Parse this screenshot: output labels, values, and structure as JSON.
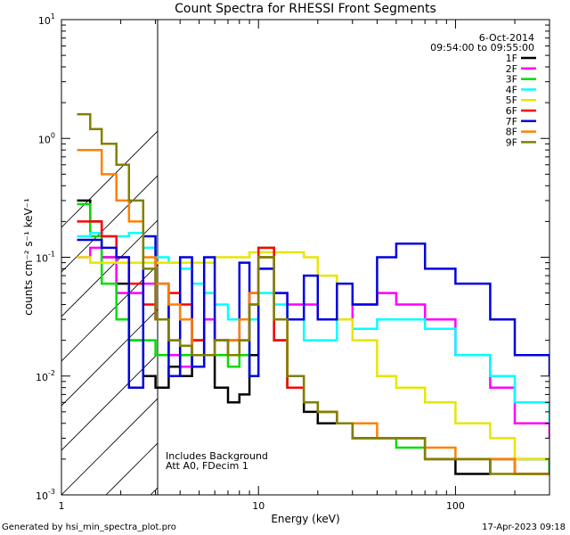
{
  "chart_data": {
    "type": "line",
    "title": "Count Spectra for RHESSI Front Segments",
    "xlabel": "Energy (keV)",
    "ylabel": "counts cm⁻² s⁻¹ keV⁻¹",
    "x_scale": "log",
    "y_scale": "log",
    "xlim": [
      1,
      300
    ],
    "ylim": [
      0.001,
      10
    ],
    "x_tick_labels": [
      "1",
      "10",
      "100"
    ],
    "y_tick_labels": [
      {
        "base": "10",
        "exp": "1"
      },
      {
        "base": "10",
        "exp": "0"
      },
      {
        "base": "10",
        "exp": "-1"
      },
      {
        "base": "10",
        "exp": "-2"
      },
      {
        "base": "10",
        "exp": "-3"
      }
    ],
    "date": "6-Oct-2014",
    "time_range": "09:54:00 to 09:55:00",
    "annotations": [
      "Includes Background",
      "Att A0, FDecim 1"
    ],
    "hatched_region_keV": [
      1,
      3
    ],
    "legend_placement": "top-right",
    "series": [
      {
        "name": "1F",
        "color": "#000000",
        "x": [
          1.2,
          1.4,
          1.6,
          1.9,
          2.2,
          2.6,
          3.0,
          3.5,
          4.0,
          4.6,
          5.3,
          6.0,
          7.0,
          8.0,
          9.0,
          10.0,
          12.0,
          14.0,
          17.0,
          20.0,
          25.0,
          30.0,
          40.0,
          50.0,
          70.0,
          100.0,
          150.0,
          200.0,
          300.0
        ],
        "y": [
          0.3,
          0.2,
          0.1,
          0.06,
          0.02,
          0.01,
          0.008,
          0.012,
          0.01,
          0.02,
          0.015,
          0.008,
          0.006,
          0.007,
          0.015,
          0.1,
          0.02,
          0.008,
          0.005,
          0.004,
          0.004,
          0.003,
          0.003,
          0.003,
          0.002,
          0.0015,
          0.002,
          0.002,
          0.0015
        ]
      },
      {
        "name": "2F",
        "color": "#ff00ff",
        "x": [
          1.2,
          1.4,
          1.6,
          1.9,
          2.2,
          2.6,
          3.0,
          3.5,
          4.0,
          4.6,
          5.3,
          6.0,
          7.0,
          8.0,
          9.0,
          10.0,
          12.0,
          14.0,
          17.0,
          20.0,
          25.0,
          30.0,
          40.0,
          50.0,
          70.0,
          100.0,
          150.0,
          200.0,
          300.0
        ],
        "y": [
          0.1,
          0.12,
          0.1,
          0.05,
          0.05,
          0.06,
          0.03,
          0.015,
          0.012,
          0.02,
          0.03,
          0.02,
          0.02,
          0.03,
          0.05,
          0.08,
          0.05,
          0.04,
          0.04,
          0.03,
          0.03,
          0.04,
          0.05,
          0.04,
          0.03,
          0.015,
          0.008,
          0.004,
          0.003
        ]
      },
      {
        "name": "3F",
        "color": "#00dd00",
        "x": [
          1.2,
          1.4,
          1.6,
          1.9,
          2.2,
          2.6,
          3.0,
          3.5,
          4.0,
          4.6,
          5.3,
          6.0,
          7.0,
          8.0,
          9.0,
          10.0,
          12.0,
          14.0,
          17.0,
          20.0,
          25.0,
          30.0,
          40.0,
          50.0,
          70.0,
          100.0,
          150.0,
          200.0,
          300.0
        ],
        "y": [
          0.28,
          0.15,
          0.06,
          0.03,
          0.02,
          0.02,
          0.015,
          0.02,
          0.015,
          0.012,
          0.015,
          0.015,
          0.012,
          0.015,
          0.04,
          0.12,
          0.02,
          0.008,
          0.006,
          0.005,
          0.004,
          0.003,
          0.003,
          0.0025,
          0.002,
          0.002,
          0.002,
          0.002,
          0.0015
        ]
      },
      {
        "name": "4F",
        "color": "#00ffff",
        "x": [
          1.2,
          1.4,
          1.6,
          1.9,
          2.2,
          2.6,
          3.0,
          3.5,
          4.0,
          4.6,
          5.3,
          6.0,
          7.0,
          8.0,
          9.0,
          10.0,
          12.0,
          14.0,
          17.0,
          20.0,
          25.0,
          30.0,
          40.0,
          50.0,
          70.0,
          100.0,
          150.0,
          200.0,
          300.0
        ],
        "y": [
          0.15,
          0.16,
          0.15,
          0.15,
          0.16,
          0.12,
          0.1,
          0.09,
          0.08,
          0.06,
          0.05,
          0.04,
          0.03,
          0.03,
          0.03,
          0.05,
          0.04,
          0.03,
          0.02,
          0.02,
          0.03,
          0.025,
          0.03,
          0.03,
          0.025,
          0.015,
          0.01,
          0.006,
          0.004
        ]
      },
      {
        "name": "5F",
        "color": "#e6e600",
        "x": [
          1.2,
          1.4,
          1.6,
          1.9,
          2.2,
          2.6,
          3.0,
          3.5,
          4.0,
          4.6,
          5.3,
          6.0,
          7.0,
          8.0,
          9.0,
          10.0,
          12.0,
          14.0,
          17.0,
          20.0,
          25.0,
          30.0,
          40.0,
          50.0,
          70.0,
          100.0,
          150.0,
          200.0,
          300.0
        ],
        "y": [
          0.1,
          0.09,
          0.09,
          0.09,
          0.09,
          0.09,
          0.09,
          0.09,
          0.09,
          0.09,
          0.09,
          0.1,
          0.1,
          0.1,
          0.11,
          0.11,
          0.11,
          0.11,
          0.1,
          0.07,
          0.03,
          0.02,
          0.01,
          0.008,
          0.006,
          0.004,
          0.003,
          0.002,
          0.002
        ]
      },
      {
        "name": "6F",
        "color": "#ff0000",
        "x": [
          1.2,
          1.4,
          1.6,
          1.9,
          2.2,
          2.6,
          3.0,
          3.5,
          4.0,
          4.6,
          5.3,
          6.0,
          7.0,
          8.0,
          9.0,
          10.0,
          12.0,
          14.0,
          17.0,
          20.0,
          25.0,
          30.0,
          40.0,
          50.0,
          70.0,
          100.0,
          150.0,
          200.0,
          300.0
        ],
        "y": [
          0.2,
          0.2,
          0.15,
          0.1,
          0.06,
          0.04,
          0.03,
          0.05,
          0.04,
          0.02,
          0.015,
          0.02,
          0.015,
          0.02,
          0.05,
          0.12,
          0.02,
          0.008,
          0.006,
          0.005,
          0.004,
          0.003,
          0.003,
          0.003,
          0.002,
          0.002,
          0.002,
          0.0015,
          0.0015
        ]
      },
      {
        "name": "7F",
        "color": "#0000dd",
        "x": [
          1.2,
          1.4,
          1.6,
          1.9,
          2.2,
          2.6,
          3.0,
          3.5,
          4.0,
          4.6,
          5.3,
          6.0,
          7.0,
          8.0,
          9.0,
          10.0,
          12.0,
          14.0,
          17.0,
          20.0,
          25.0,
          30.0,
          40.0,
          50.0,
          70.0,
          100.0,
          150.0,
          200.0,
          300.0
        ],
        "y": [
          0.14,
          0.14,
          0.12,
          0.1,
          0.008,
          0.15,
          0.06,
          0.01,
          0.1,
          0.012,
          0.1,
          0.02,
          0.02,
          0.09,
          0.01,
          0.08,
          0.05,
          0.03,
          0.07,
          0.03,
          0.06,
          0.04,
          0.1,
          0.13,
          0.08,
          0.06,
          0.03,
          0.015,
          0.01
        ]
      },
      {
        "name": "8F",
        "color": "#ff8000",
        "x": [
          1.2,
          1.4,
          1.6,
          1.9,
          2.2,
          2.6,
          3.0,
          3.5,
          4.0,
          4.6,
          5.3,
          6.0,
          7.0,
          8.0,
          9.0,
          10.0,
          12.0,
          14.0,
          17.0,
          20.0,
          25.0,
          30.0,
          40.0,
          50.0,
          70.0,
          100.0,
          150.0,
          200.0,
          300.0
        ],
        "y": [
          0.8,
          0.8,
          0.5,
          0.3,
          0.2,
          0.1,
          0.06,
          0.04,
          0.03,
          0.015,
          0.015,
          0.02,
          0.02,
          0.03,
          0.05,
          0.1,
          0.03,
          0.01,
          0.006,
          0.005,
          0.004,
          0.004,
          0.003,
          0.003,
          0.0025,
          0.002,
          0.002,
          0.0015,
          0.0015
        ]
      },
      {
        "name": "9F",
        "color": "#808000",
        "x": [
          1.2,
          1.4,
          1.6,
          1.9,
          2.2,
          2.6,
          3.0,
          3.5,
          4.0,
          4.6,
          5.3,
          6.0,
          7.0,
          8.0,
          9.0,
          10.0,
          12.0,
          14.0,
          17.0,
          20.0,
          25.0,
          30.0,
          40.0,
          50.0,
          70.0,
          100.0,
          150.0,
          200.0,
          300.0
        ],
        "y": [
          1.6,
          1.2,
          0.9,
          0.6,
          0.3,
          0.08,
          0.03,
          0.02,
          0.018,
          0.015,
          0.015,
          0.02,
          0.015,
          0.02,
          0.04,
          0.1,
          0.03,
          0.01,
          0.006,
          0.005,
          0.004,
          0.003,
          0.003,
          0.003,
          0.002,
          0.002,
          0.0015,
          0.0015,
          0.0015
        ]
      }
    ]
  },
  "footer": {
    "generated_by": "Generated by hsi_min_spectra_plot.pro",
    "timestamp": "17-Apr-2023 09:18"
  }
}
